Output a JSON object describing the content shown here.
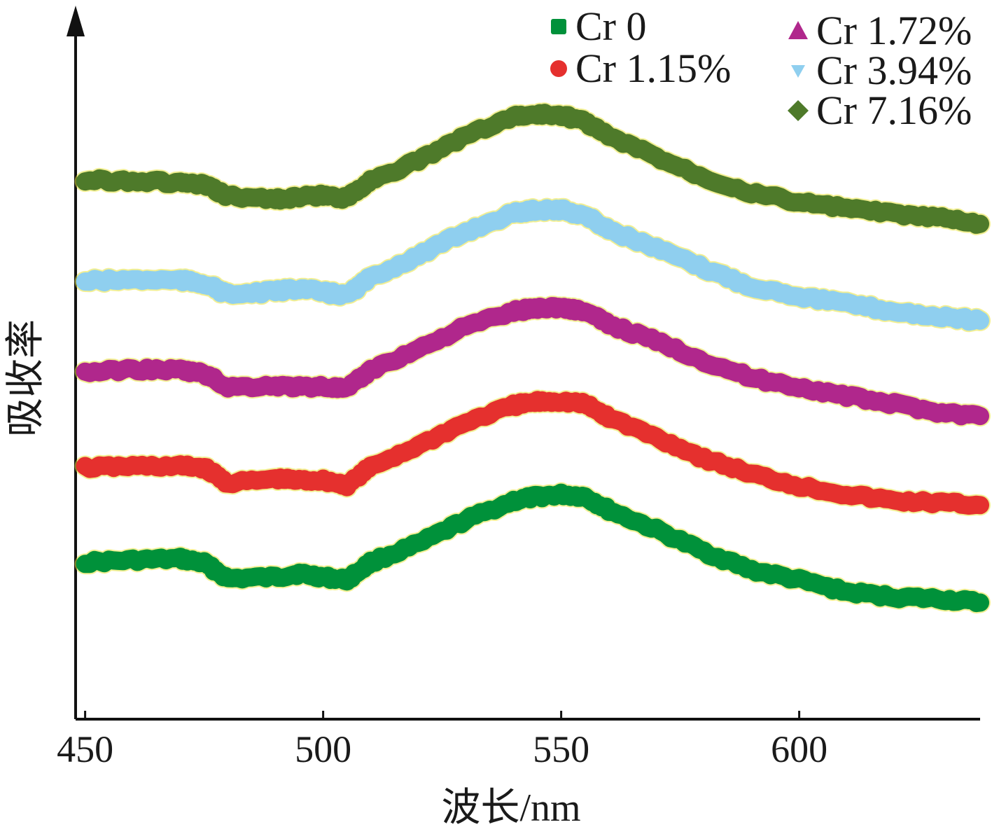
{
  "chart_data": {
    "type": "line",
    "title": "",
    "xlabel": "波长/nm",
    "ylabel": "吸收率",
    "xlim": [
      448,
      638
    ],
    "ylim": [
      0,
      1
    ],
    "xticks": [
      450,
      500,
      550,
      600
    ],
    "yticks": [],
    "y_axis_has_arrow": true,
    "y_tick_labels_shown": false,
    "grid": false,
    "legend_position": "top-right",
    "legend_columns": 2,
    "x": [
      450,
      460,
      470,
      475,
      480,
      490,
      495,
      500,
      505,
      510,
      520,
      530,
      540,
      545,
      550,
      555,
      560,
      570,
      580,
      590,
      600,
      610,
      620,
      630,
      638
    ],
    "series": [
      {
        "name": "Cr 0",
        "color": "#00913a",
        "marker": "square",
        "values": [
          0.222,
          0.225,
          0.227,
          0.221,
          0.199,
          0.201,
          0.206,
          0.201,
          0.197,
          0.222,
          0.248,
          0.282,
          0.309,
          0.315,
          0.318,
          0.315,
          0.296,
          0.268,
          0.237,
          0.211,
          0.197,
          0.18,
          0.173,
          0.17,
          0.165
        ]
      },
      {
        "name": "Cr 1.15%",
        "color": "#e5302e",
        "marker": "circle",
        "values": [
          0.356,
          0.358,
          0.358,
          0.356,
          0.334,
          0.34,
          0.338,
          0.338,
          0.331,
          0.357,
          0.387,
          0.42,
          0.444,
          0.449,
          0.45,
          0.446,
          0.427,
          0.399,
          0.369,
          0.347,
          0.33,
          0.318,
          0.309,
          0.306,
          0.303
        ]
      },
      {
        "name": "Cr 1.72%",
        "color": "#b0278c",
        "marker": "triangle-up",
        "values": [
          0.491,
          0.495,
          0.494,
          0.489,
          0.47,
          0.472,
          0.47,
          0.471,
          0.467,
          0.494,
          0.524,
          0.556,
          0.577,
          0.582,
          0.583,
          0.577,
          0.559,
          0.535,
          0.507,
          0.483,
          0.47,
          0.457,
          0.446,
          0.434,
          0.429
        ]
      },
      {
        "name": "Cr 3.94%",
        "color": "#8fcfef",
        "marker": "triangle-down",
        "values": [
          0.62,
          0.622,
          0.621,
          0.617,
          0.601,
          0.605,
          0.61,
          0.604,
          0.6,
          0.625,
          0.656,
          0.69,
          0.716,
          0.721,
          0.721,
          0.713,
          0.693,
          0.666,
          0.638,
          0.612,
          0.599,
          0.588,
          0.577,
          0.569,
          0.564
        ]
      },
      {
        "name": "Cr 7.16%",
        "color": "#4e7a2a",
        "marker": "diamond",
        "values": [
          0.763,
          0.762,
          0.759,
          0.756,
          0.74,
          0.736,
          0.739,
          0.741,
          0.737,
          0.763,
          0.79,
          0.826,
          0.853,
          0.856,
          0.855,
          0.846,
          0.825,
          0.796,
          0.767,
          0.745,
          0.732,
          0.723,
          0.715,
          0.709,
          0.701
        ]
      }
    ]
  }
}
